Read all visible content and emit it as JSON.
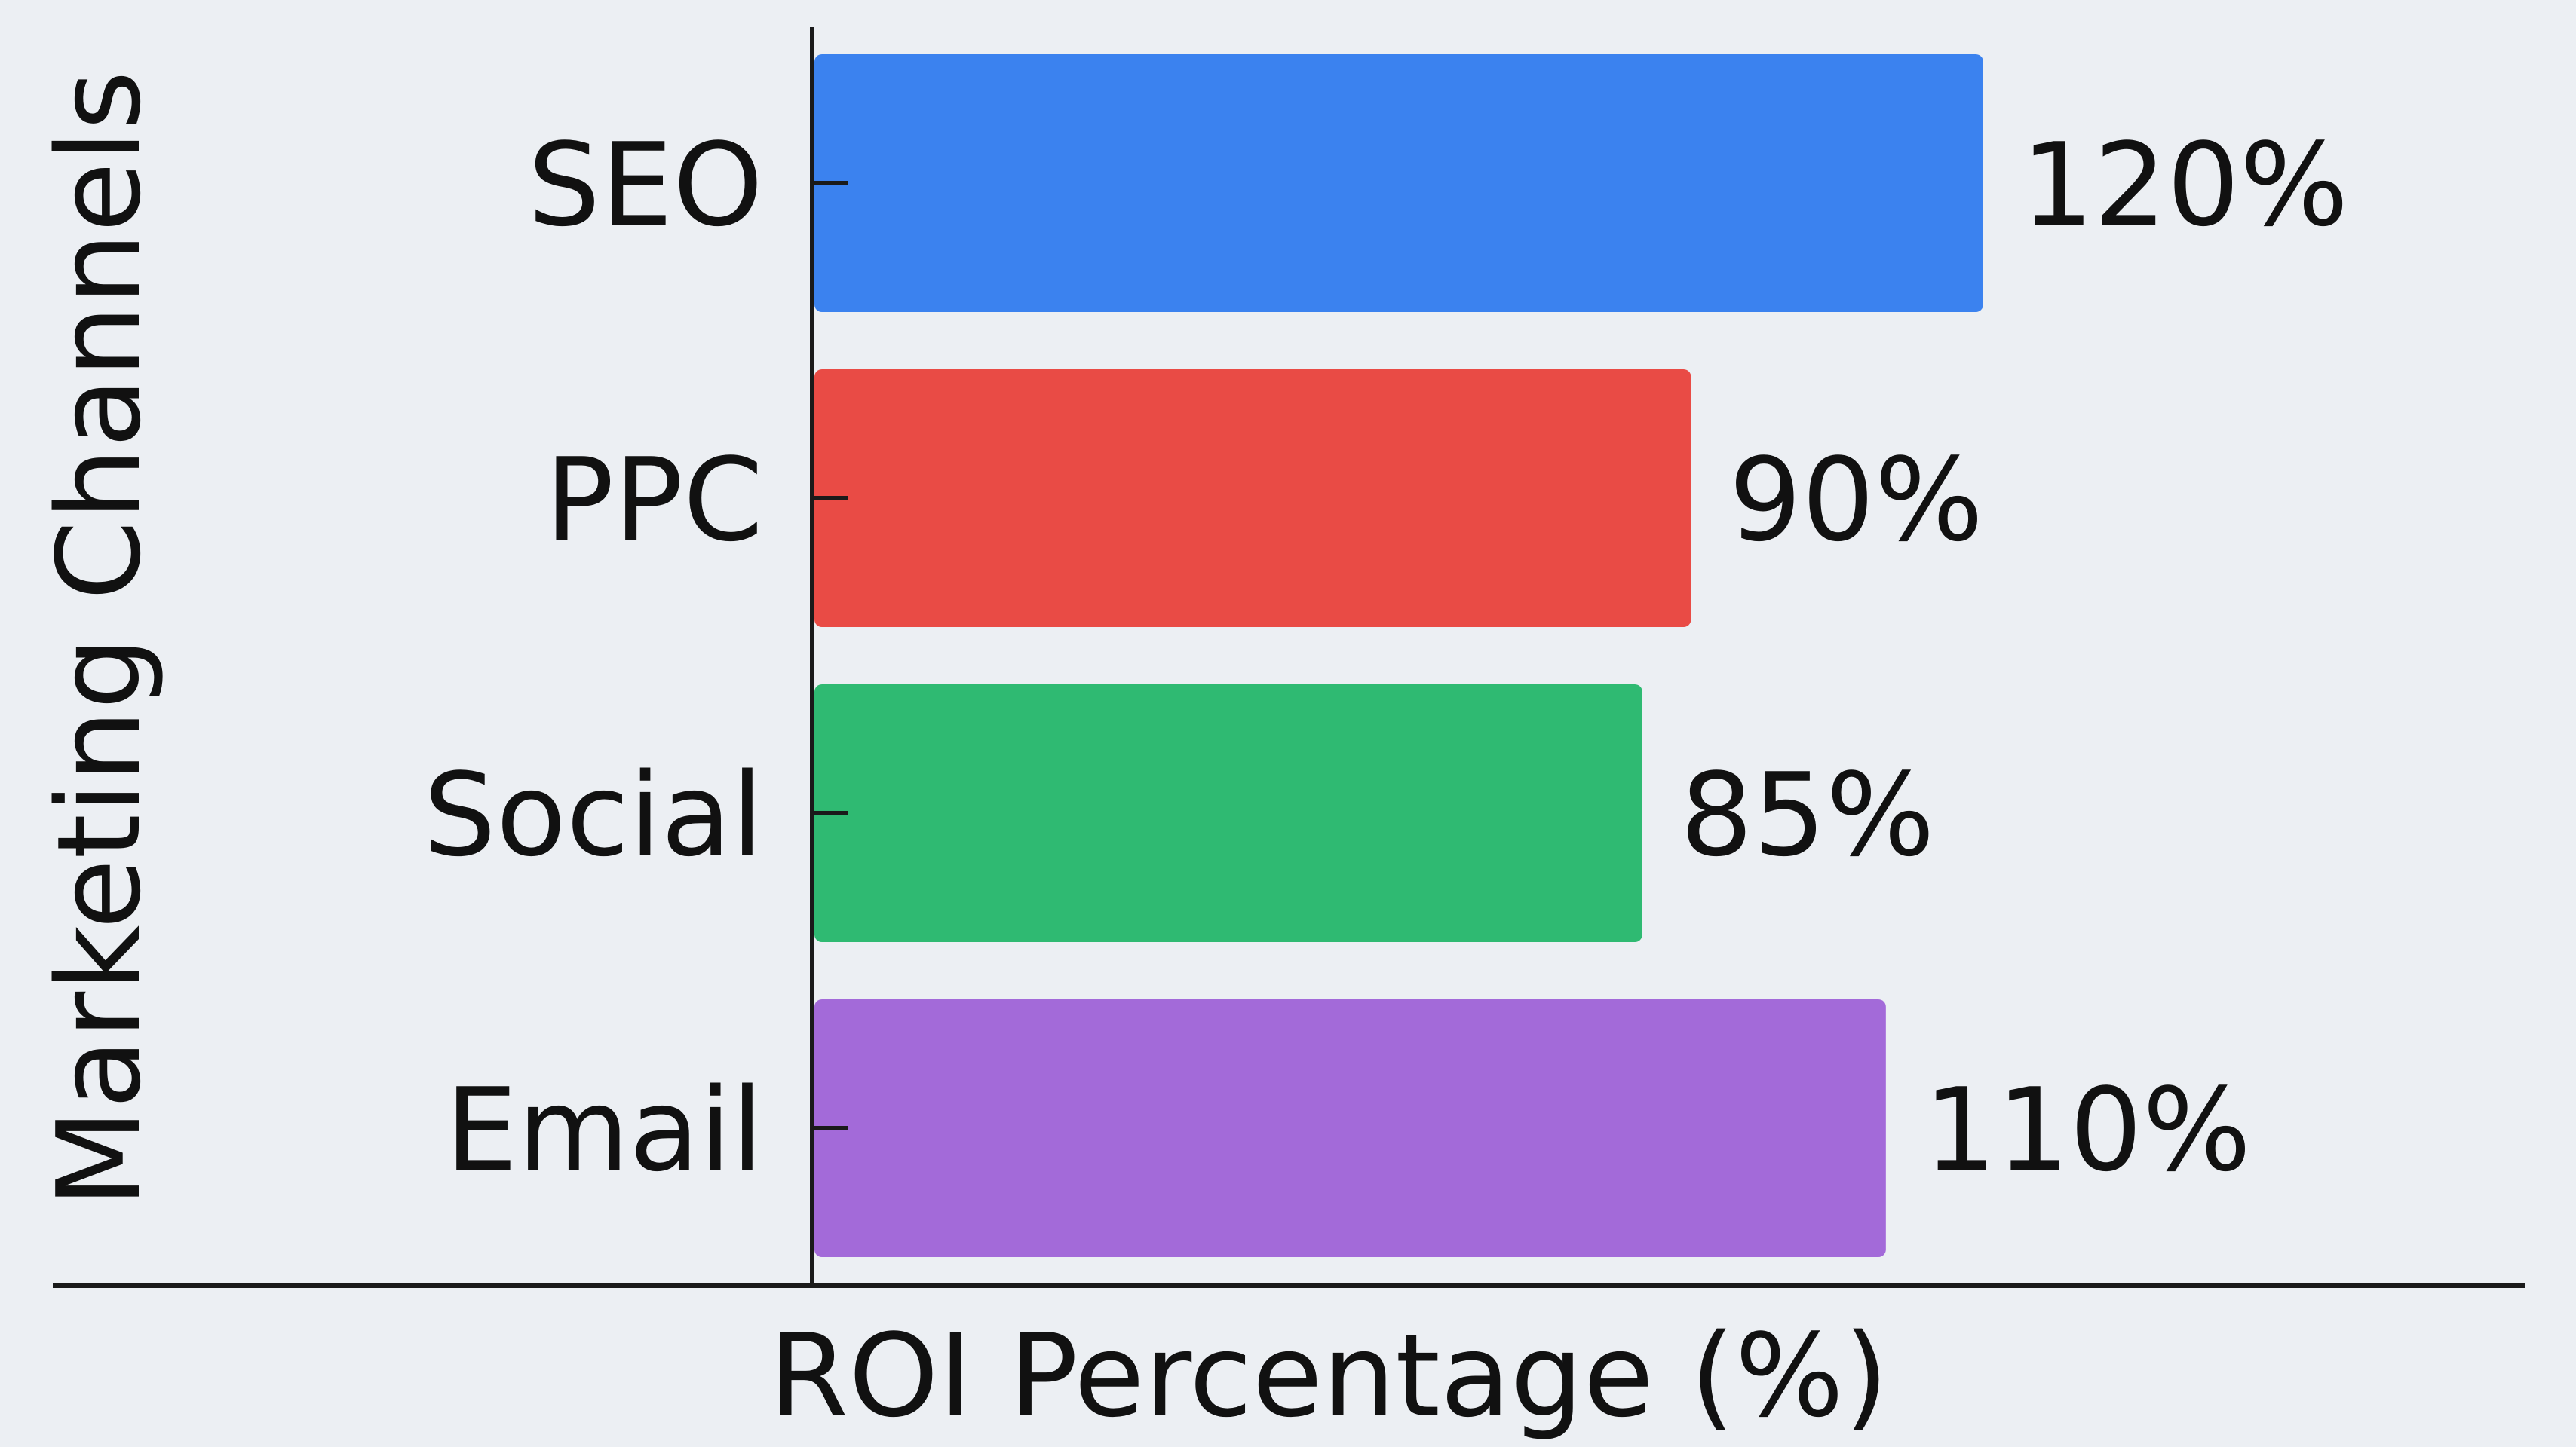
{
  "chart_data": {
    "type": "bar",
    "orientation": "horizontal",
    "categories": [
      "SEO",
      "PPC",
      "Social",
      "Email"
    ],
    "values": [
      120,
      90,
      85,
      110
    ],
    "value_labels": [
      "120%",
      "90%",
      "85%",
      "110%"
    ],
    "colors": [
      "#3b82ef",
      "#e94b45",
      "#2fba72",
      "#a36ad9"
    ],
    "xlabel": "ROI Percentage (%)",
    "ylabel": "Marketing Channels",
    "title": "",
    "xlim": [
      0,
      120
    ],
    "grid": false,
    "legend": "none"
  }
}
